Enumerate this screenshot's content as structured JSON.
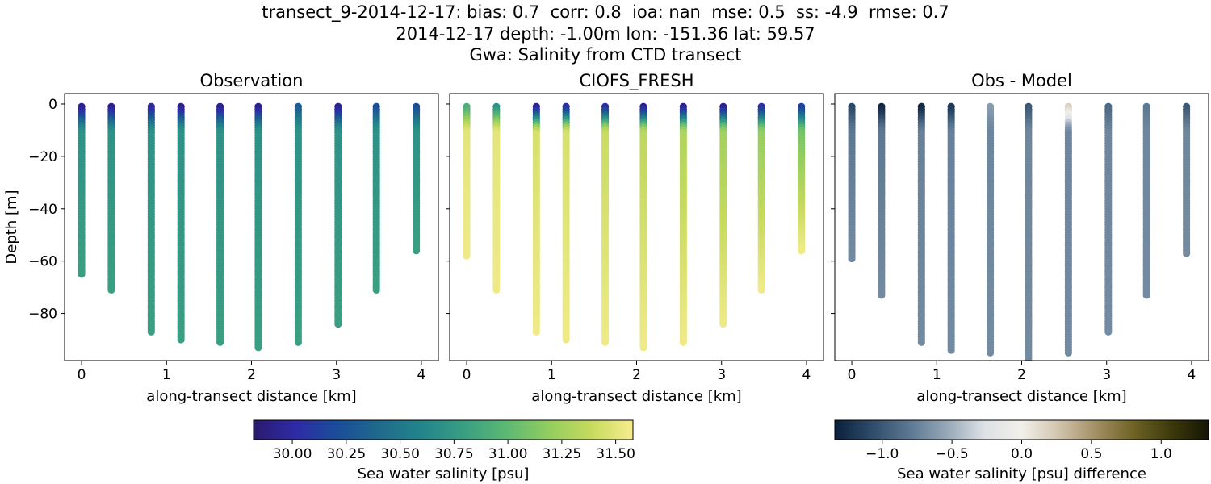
{
  "header": {
    "line1": "transect_9-2014-12-17: bias: 0.7  corr: 0.8  ioa: nan  mse: 0.5  ss: -4.9  rmse: 0.7",
    "line2": "2014-12-17 depth: -1.00m lon: -151.36 lat: 59.57",
    "line3": "Gwa: Salinity from CTD transect"
  },
  "chart_data": {
    "type": "scatter",
    "ylabel": "Depth [m]",
    "xlabel": "along-transect distance [km]",
    "xlim": [
      -0.2,
      4.2
    ],
    "ylim": [
      -98,
      4
    ],
    "xticks": [
      0,
      1,
      2,
      3,
      4
    ],
    "yticks": [
      0,
      -20,
      -40,
      -60,
      -80
    ],
    "ytick_labels": [
      "0",
      "−20",
      "−40",
      "−60",
      "−80"
    ],
    "station_distances_km": [
      0,
      0.35,
      0.82,
      1.17,
      1.63,
      2.08,
      2.55,
      3.02,
      3.47,
      3.94
    ],
    "panels": [
      {
        "title": "Observation",
        "colorscale": "salinity",
        "casts": [
          {
            "x": 0,
            "ymin": -65,
            "top": 29.9,
            "mid": 30.7,
            "bottom": 30.8
          },
          {
            "x": 0.35,
            "ymin": -71,
            "top": 29.9,
            "mid": 30.7,
            "bottom": 30.8
          },
          {
            "x": 0.82,
            "ymin": -87,
            "top": 29.95,
            "mid": 30.7,
            "bottom": 30.8
          },
          {
            "x": 1.17,
            "ymin": -90,
            "top": 29.9,
            "mid": 30.7,
            "bottom": 30.8
          },
          {
            "x": 1.63,
            "ymin": -91,
            "top": 29.9,
            "mid": 30.7,
            "bottom": 30.8
          },
          {
            "x": 2.08,
            "ymin": -93,
            "top": 29.9,
            "mid": 30.7,
            "bottom": 30.8
          },
          {
            "x": 2.55,
            "ymin": -91,
            "top": 30.3,
            "mid": 30.7,
            "bottom": 30.8
          },
          {
            "x": 3.02,
            "ymin": -84,
            "top": 29.9,
            "mid": 30.7,
            "bottom": 30.8
          },
          {
            "x": 3.47,
            "ymin": -71,
            "top": 30.2,
            "mid": 30.7,
            "bottom": 30.8
          },
          {
            "x": 3.94,
            "ymin": -56,
            "top": 30.2,
            "mid": 30.7,
            "bottom": 30.8
          }
        ]
      },
      {
        "title": "CIOFS_FRESH",
        "colorscale": "salinity",
        "casts": [
          {
            "x": 0,
            "ymin": -58,
            "top": 30.9,
            "mid": 31.5,
            "bottom": 31.55
          },
          {
            "x": 0.35,
            "ymin": -71,
            "top": 30.7,
            "mid": 31.5,
            "bottom": 31.55
          },
          {
            "x": 0.82,
            "ymin": -87,
            "top": 29.9,
            "mid": 31.45,
            "bottom": 31.55
          },
          {
            "x": 1.17,
            "ymin": -90,
            "top": 30.0,
            "mid": 31.45,
            "bottom": 31.55
          },
          {
            "x": 1.63,
            "ymin": -91,
            "top": 30.0,
            "mid": 31.4,
            "bottom": 31.55
          },
          {
            "x": 2.08,
            "ymin": -93,
            "top": 29.9,
            "mid": 31.35,
            "bottom": 31.55
          },
          {
            "x": 2.55,
            "ymin": -91,
            "top": 29.9,
            "mid": 31.3,
            "bottom": 31.55
          },
          {
            "x": 3.02,
            "ymin": -84,
            "top": 29.9,
            "mid": 31.25,
            "bottom": 31.55
          },
          {
            "x": 3.47,
            "ymin": -71,
            "top": 30.0,
            "mid": 31.2,
            "bottom": 31.55
          },
          {
            "x": 3.94,
            "ymin": -56,
            "top": 30.1,
            "mid": 31.1,
            "bottom": 31.55
          }
        ]
      },
      {
        "title": "Obs - Model",
        "colorscale": "difference",
        "casts": [
          {
            "x": 0,
            "ymin": -59,
            "top": -1.1,
            "mid": -0.8,
            "bottom": -0.7
          },
          {
            "x": 0.35,
            "ymin": -73,
            "top": -1.3,
            "mid": -0.8,
            "bottom": -0.7
          },
          {
            "x": 0.82,
            "ymin": -91,
            "top": -1.3,
            "mid": -0.75,
            "bottom": -0.7
          },
          {
            "x": 1.17,
            "ymin": -94,
            "top": -1.2,
            "mid": -0.75,
            "bottom": -0.7
          },
          {
            "x": 1.63,
            "ymin": -95,
            "top": -0.6,
            "mid": -0.72,
            "bottom": -0.7
          },
          {
            "x": 2.08,
            "ymin": -100,
            "top": -1.0,
            "mid": -0.72,
            "bottom": -0.7
          },
          {
            "x": 2.55,
            "ymin": -95,
            "top": 0.2,
            "mid": -0.72,
            "bottom": -0.7
          },
          {
            "x": 3.02,
            "ymin": -87,
            "top": -0.9,
            "mid": -0.72,
            "bottom": -0.7
          },
          {
            "x": 3.47,
            "ymin": -73,
            "top": -0.8,
            "mid": -0.72,
            "bottom": -0.7
          },
          {
            "x": 3.94,
            "ymin": -57,
            "top": -1.0,
            "mid": -0.72,
            "bottom": -0.7
          }
        ]
      }
    ],
    "colorbars": [
      {
        "label": "Sea water salinity [psu]",
        "vmin": 29.82,
        "vmax": 31.58,
        "ticks": [
          30.0,
          30.25,
          30.5,
          30.75,
          31.0,
          31.25,
          31.5
        ],
        "tick_labels": [
          "30.00",
          "30.25",
          "30.50",
          "30.75",
          "31.00",
          "31.25",
          "31.50"
        ],
        "colors": [
          "#2b1a6e",
          "#2e2ba6",
          "#1a4e98",
          "#1f6a8c",
          "#23858b",
          "#3a9e82",
          "#5cb873",
          "#92cd5f",
          "#c6da5e",
          "#f7ed8f"
        ]
      },
      {
        "label": "Sea water salinity [psu] difference",
        "vmin": -1.34,
        "vmax": 1.34,
        "ticks": [
          -1.0,
          -0.5,
          0.0,
          0.5,
          1.0
        ],
        "tick_labels": [
          "−1.0",
          "−0.5",
          "0.0",
          "0.5",
          "1.0"
        ],
        "colors": [
          "#0b1f3a",
          "#2e4c6b",
          "#5c7791",
          "#97a8b8",
          "#dde1e6",
          "#f2f0ea",
          "#d1c4ad",
          "#a18e62",
          "#6e6224",
          "#3d3a0c",
          "#141405"
        ]
      }
    ]
  }
}
